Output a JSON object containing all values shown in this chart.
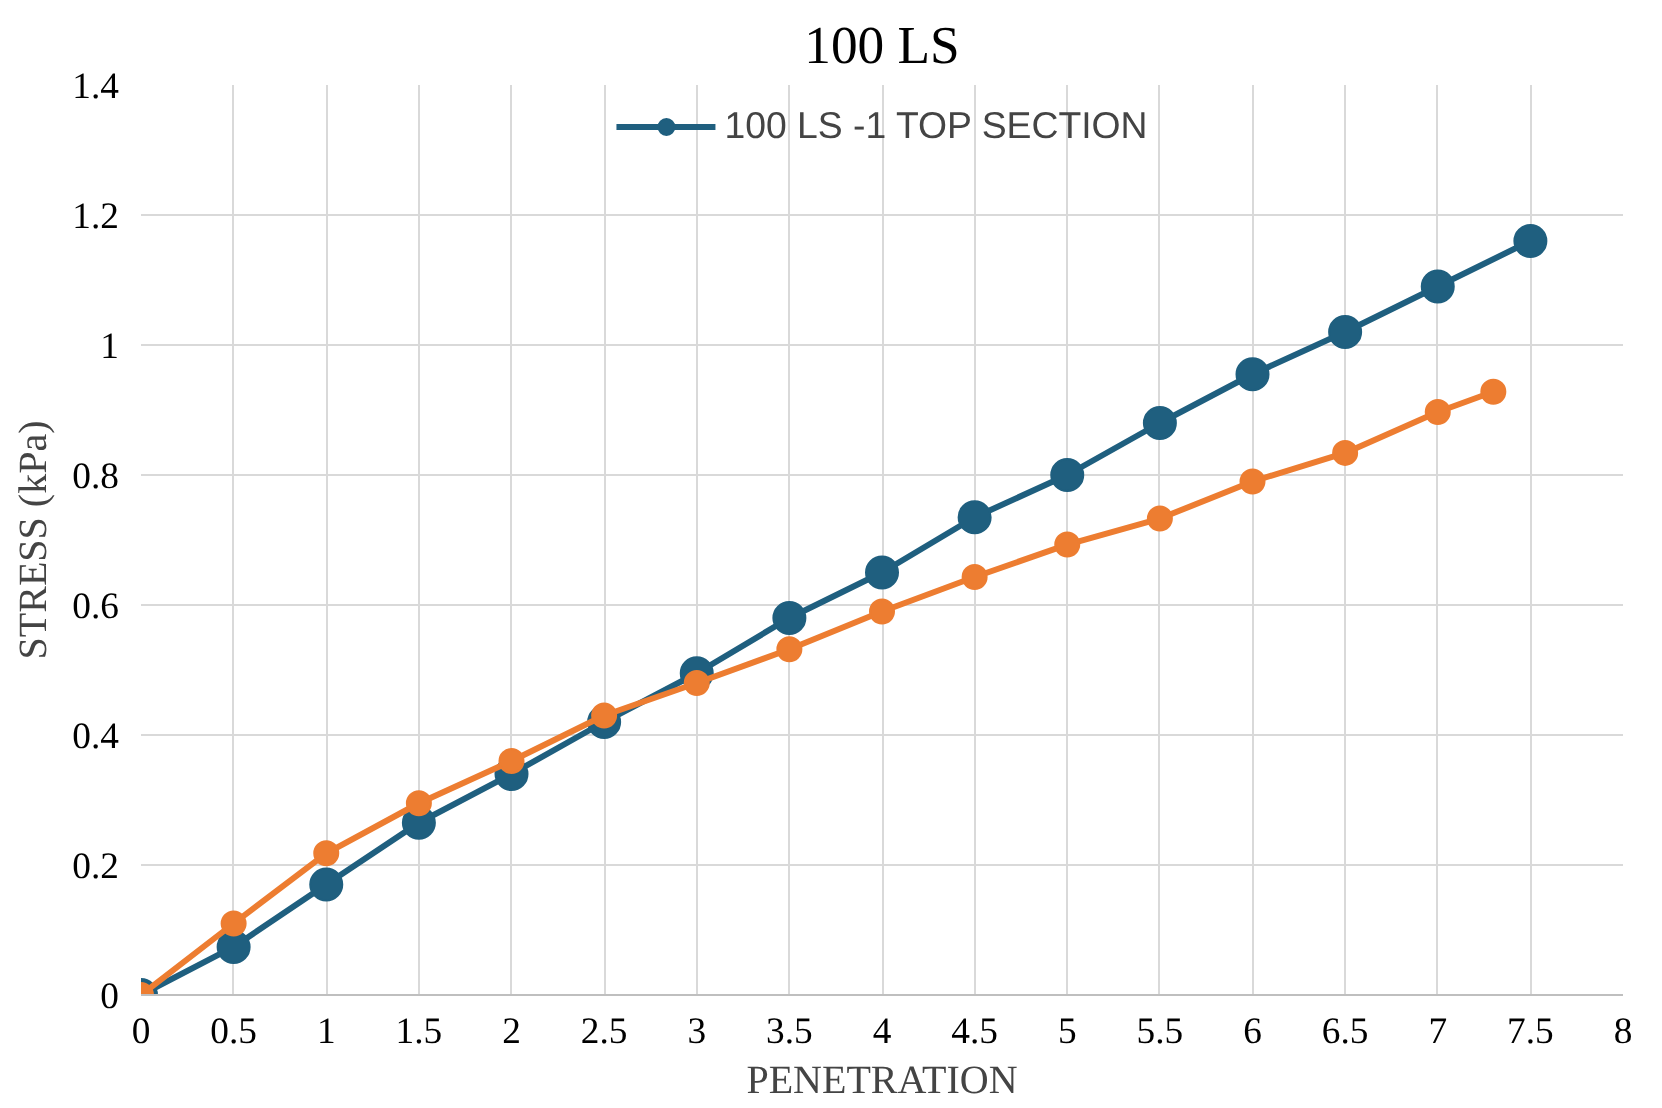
{
  "chart_data": {
    "type": "line",
    "title": "100 LS",
    "xlabel": "PENETRATION",
    "ylabel": "STRESS (kPa)",
    "xlim": [
      0,
      8
    ],
    "xticks": [
      0,
      0.5,
      1,
      1.5,
      2,
      2.5,
      3,
      3.5,
      4,
      4.5,
      5,
      5.5,
      6,
      6.5,
      7,
      7.5,
      8
    ],
    "ylim": [
      0,
      1.4
    ],
    "yticks": [
      0,
      0.2,
      0.4,
      0.6,
      0.8,
      1,
      1.2,
      1.4
    ],
    "grid": true,
    "legend": "top",
    "marker": "circle",
    "line_style": "solid",
    "series": [
      {
        "name": "100 LS -1 TOP SECTION",
        "color": "#1f5f7f",
        "x": [
          0,
          0.5,
          1,
          1.5,
          2,
          2.5,
          3,
          3.5,
          4,
          4.5,
          5,
          5.5,
          6,
          6.5,
          7,
          7.5
        ],
        "values": [
          0,
          0.074,
          0.17,
          0.265,
          0.34,
          0.42,
          0.495,
          0.58,
          0.65,
          0.735,
          0.8,
          0.88,
          0.955,
          1.02,
          1.09,
          1.16
        ]
      },
      {
        "color": "#ed7d31",
        "x": [
          0,
          0.5,
          1,
          1.5,
          2,
          2.5,
          3,
          3.5,
          4,
          4.5,
          5,
          5.5,
          6,
          6.5,
          7,
          7.3
        ],
        "values": [
          0,
          0.11,
          0.218,
          0.295,
          0.36,
          0.43,
          0.48,
          0.532,
          0.59,
          0.643,
          0.693,
          0.733,
          0.79,
          0.834,
          0.897,
          0.928
        ]
      }
    ]
  }
}
